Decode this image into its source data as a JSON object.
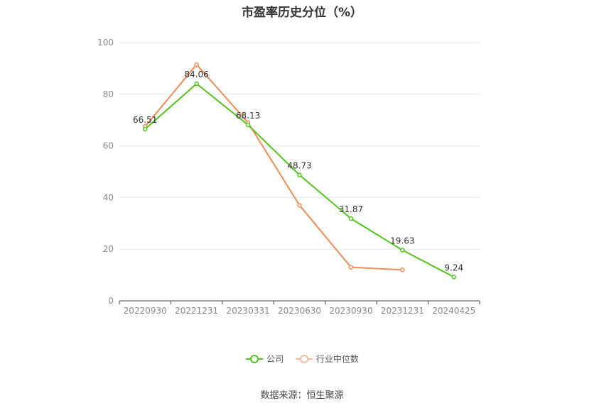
{
  "chart_data": {
    "type": "line",
    "title": "市盈率历史分位（%）",
    "categories": [
      "20220930",
      "20221231",
      "20230331",
      "20230630",
      "20230930",
      "20231231",
      "20240425"
    ],
    "ylim": [
      0,
      100
    ],
    "yticks": [
      0,
      20,
      40,
      60,
      80,
      100
    ],
    "grid": true,
    "legend_position": "bottom-center",
    "series": [
      {
        "name": "公司",
        "color": "#52c41a",
        "values": [
          66.51,
          84.06,
          68.13,
          48.73,
          31.87,
          19.63,
          9.24
        ],
        "labels": [
          "66.51",
          "84.06",
          "68.13",
          "48.73",
          "31.87",
          "19.63",
          "9.24"
        ]
      },
      {
        "name": "行业中位数",
        "color": "#f08c5a",
        "values": [
          67.5,
          91.5,
          69.0,
          37.0,
          13.0,
          12.0,
          null
        ]
      }
    ]
  },
  "source": "数据来源：恒生聚源"
}
